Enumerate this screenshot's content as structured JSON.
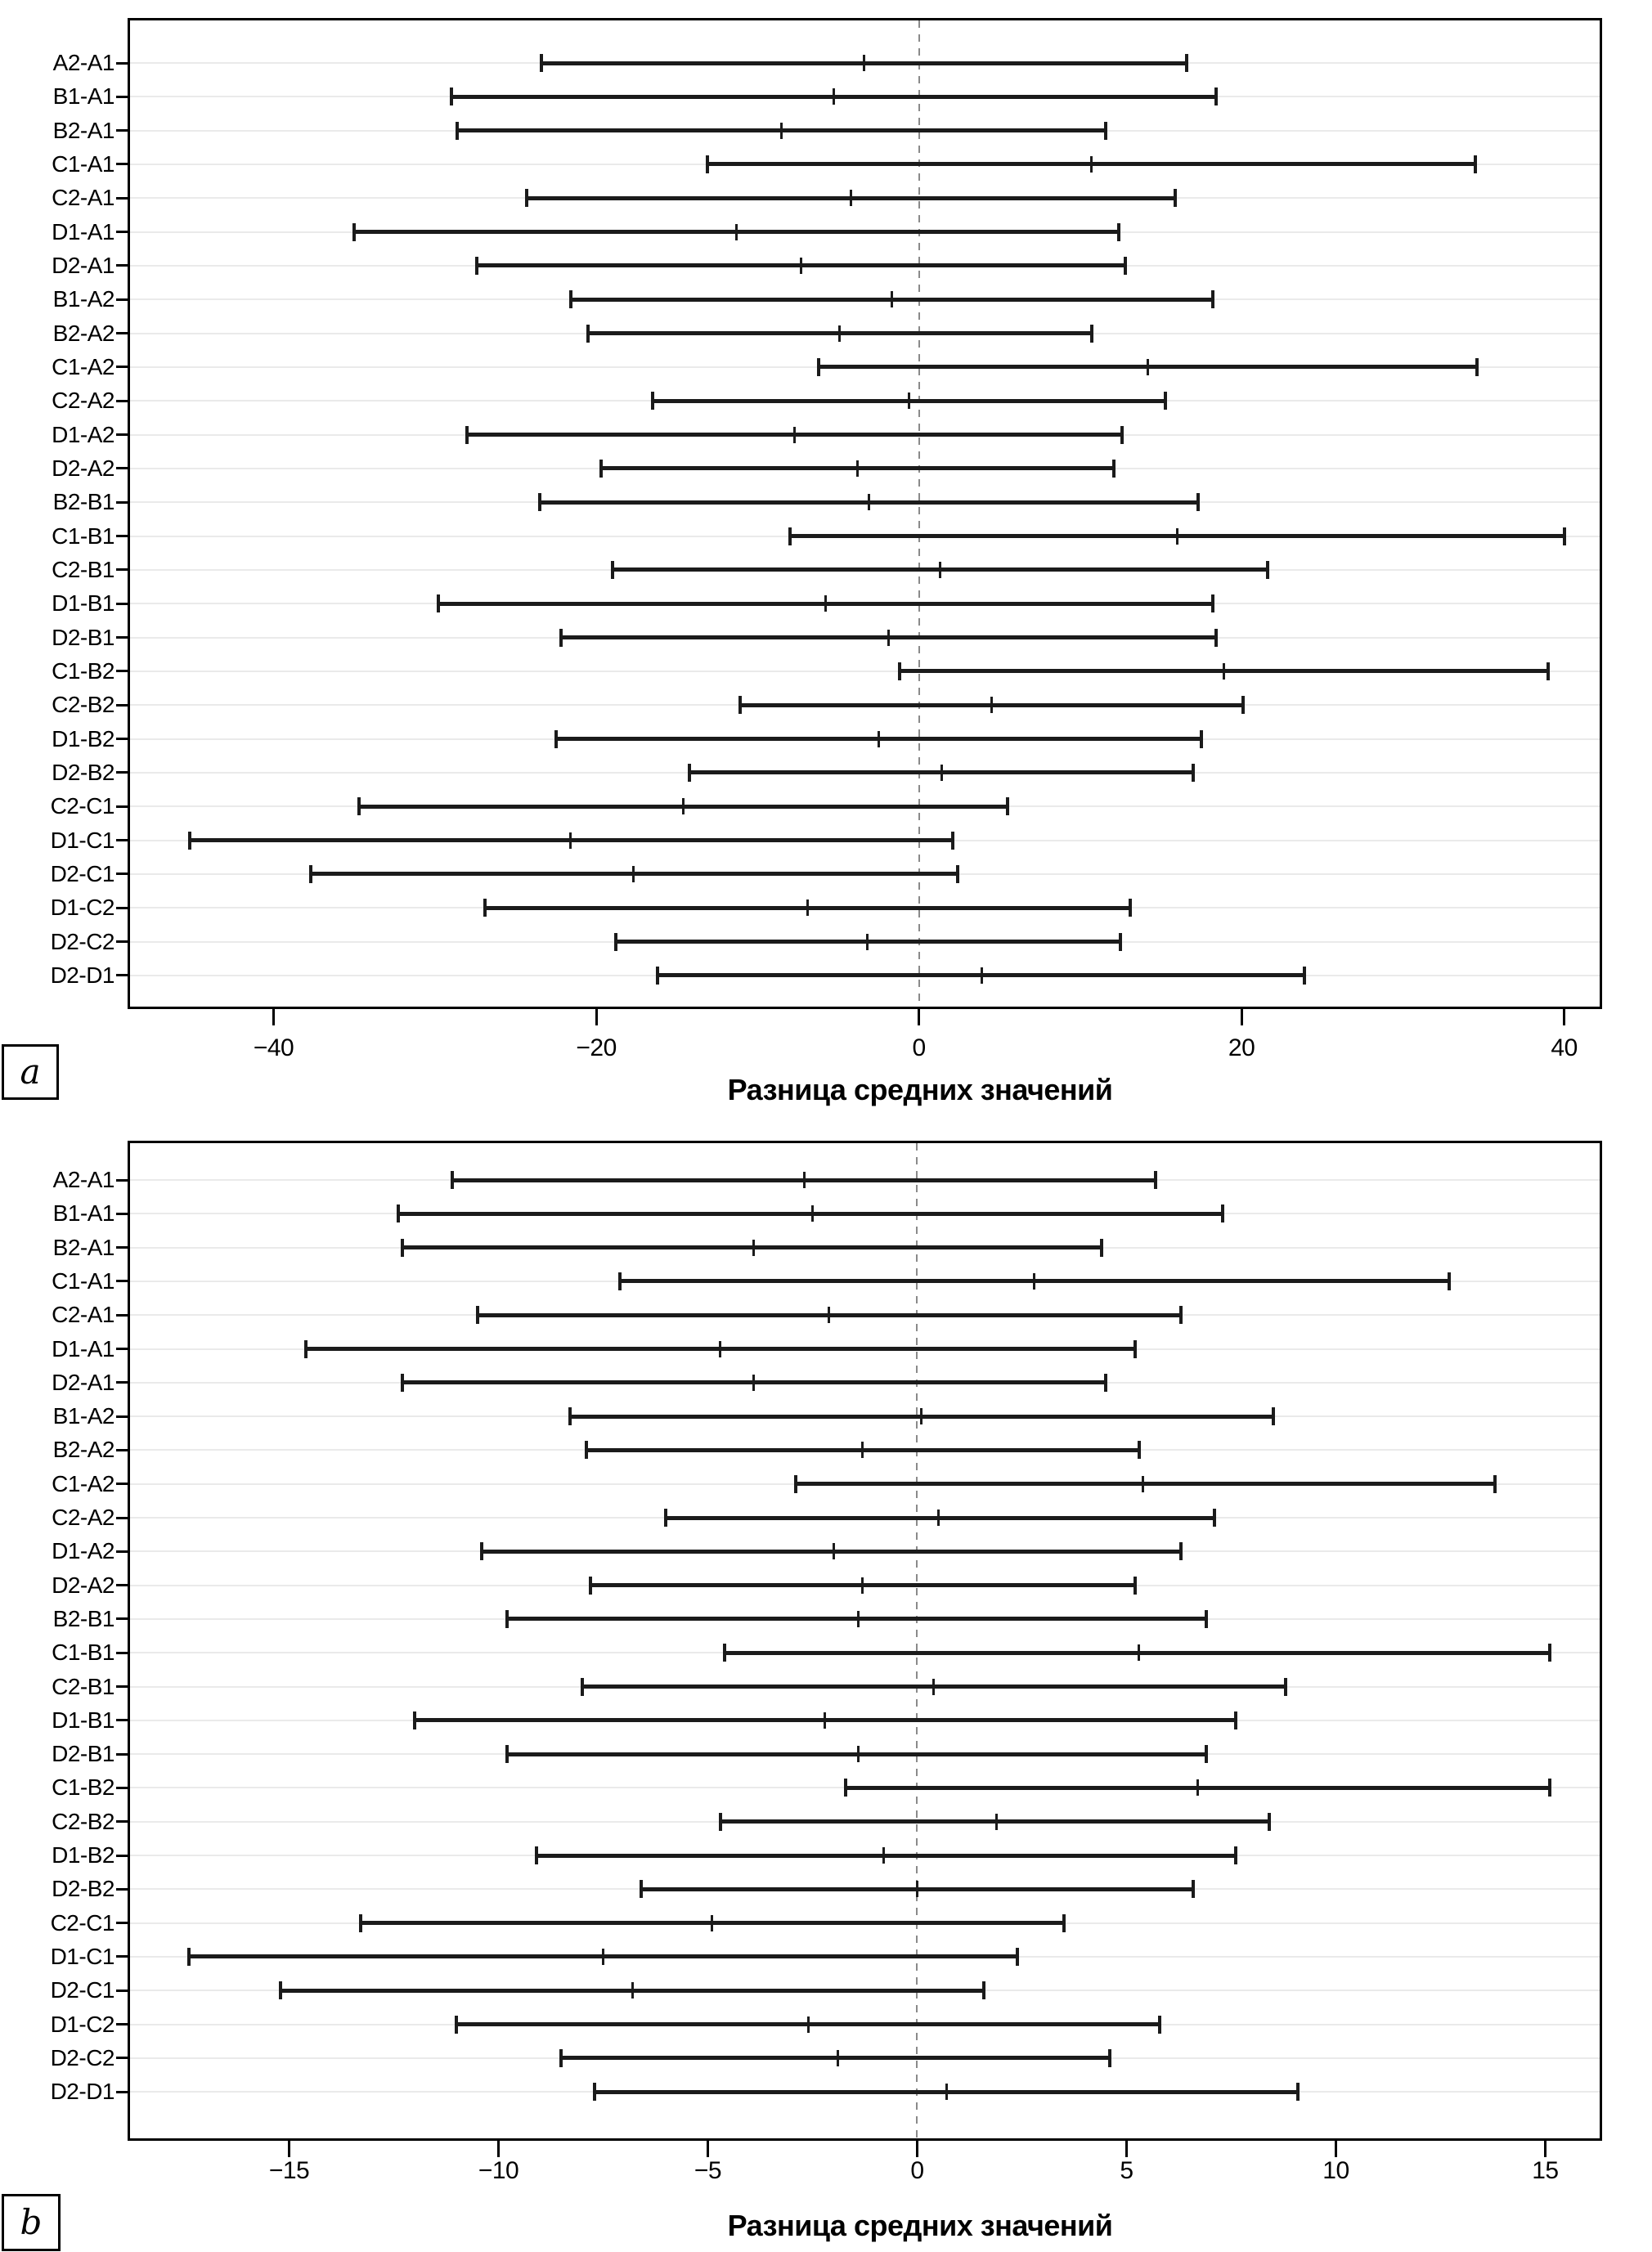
{
  "chart_data": [
    {
      "type": "errorbar",
      "panel_label": "a",
      "xlabel": "Разница средних значений",
      "xlim": [
        -48.9,
        42.2
      ],
      "xticks": [
        -40,
        -20,
        0,
        20,
        40
      ],
      "xtick_labels": [
        "−40",
        "−20",
        "0",
        "20",
        "40"
      ],
      "grid": "horizontal-light-per-row",
      "zero_line": "dashed-gray",
      "legend": "none",
      "categories": [
        "A2-A1",
        "B1-A1",
        "B2-A1",
        "C1-A1",
        "C2-A1",
        "D1-A1",
        "D2-A1",
        "B1-A2",
        "B2-A2",
        "C1-A2",
        "C2-A2",
        "D1-A2",
        "D2-A2",
        "B2-B1",
        "C1-B1",
        "C2-B1",
        "D1-B1",
        "D2-B1",
        "C1-B2",
        "C2-B2",
        "D1-B2",
        "D2-B2",
        "C2-C1",
        "D1-C1",
        "D2-C1",
        "D1-C2",
        "D2-C2",
        "D2-D1"
      ],
      "series": [
        {
          "name": "confidence-interval",
          "lo": [
            -23.4,
            -29.0,
            -28.6,
            -13.1,
            -24.3,
            -35.0,
            -27.4,
            -21.6,
            -20.5,
            -6.2,
            -16.5,
            -28.0,
            -19.7,
            -23.5,
            -8.0,
            -19.0,
            -29.8,
            -22.2,
            -1.2,
            -11.1,
            -22.5,
            -14.2,
            -34.7,
            -45.2,
            -37.7,
            -26.9,
            -18.8,
            -16.2
          ],
          "mid": [
            -3.4,
            -5.3,
            -8.5,
            10.7,
            -4.2,
            -11.3,
            -7.3,
            -1.7,
            -4.9,
            14.2,
            -0.6,
            -7.7,
            -3.8,
            -3.1,
            16.0,
            1.3,
            -5.8,
            -1.9,
            18.9,
            4.5,
            -2.5,
            1.4,
            -14.6,
            -21.6,
            -17.7,
            -6.9,
            -3.2,
            3.9
          ],
          "hi": [
            16.6,
            18.4,
            11.6,
            34.5,
            15.9,
            12.4,
            12.8,
            18.2,
            10.7,
            34.6,
            15.3,
            12.6,
            12.1,
            17.3,
            40.0,
            21.6,
            18.2,
            18.4,
            39.0,
            20.1,
            17.5,
            17.0,
            5.5,
            2.1,
            2.4,
            13.1,
            12.5,
            23.9
          ]
        }
      ]
    },
    {
      "type": "errorbar",
      "panel_label": "b",
      "xlabel": "Разница средних значений",
      "xlim": [
        -18.8,
        16.3
      ],
      "xticks": [
        -15,
        -10,
        -5,
        0,
        5,
        10,
        15
      ],
      "xtick_labels": [
        "−15",
        "−10",
        "−5",
        "0",
        "5",
        "10",
        "15"
      ],
      "grid": "horizontal-light-per-row",
      "zero_line": "dashed-gray",
      "legend": "none",
      "categories": [
        "A2-A1",
        "B1-A1",
        "B2-A1",
        "C1-A1",
        "C2-A1",
        "D1-A1",
        "D2-A1",
        "B1-A2",
        "B2-A2",
        "C1-A2",
        "C2-A2",
        "D1-A2",
        "D2-A2",
        "B2-B1",
        "C1-B1",
        "C2-B1",
        "D1-B1",
        "D2-B1",
        "C1-B2",
        "C2-B2",
        "D1-B2",
        "D2-B2",
        "C2-C1",
        "D1-C1",
        "D2-C1",
        "D1-C2",
        "D2-C2",
        "D2-D1"
      ],
      "series": [
        {
          "name": "confidence-interval",
          "lo": [
            -11.1,
            -12.4,
            -12.3,
            -7.1,
            -10.5,
            -14.6,
            -12.3,
            -8.3,
            -7.9,
            -2.9,
            -6.0,
            -10.4,
            -7.8,
            -9.8,
            -4.6,
            -8.0,
            -12.0,
            -9.8,
            -1.7,
            -4.7,
            -9.1,
            -6.6,
            -13.3,
            -17.4,
            -15.2,
            -11.0,
            -8.5,
            -7.7
          ],
          "mid": [
            -2.7,
            -2.5,
            -3.9,
            2.8,
            -2.1,
            -4.7,
            -3.9,
            0.1,
            -1.3,
            5.4,
            0.5,
            -2.0,
            -1.3,
            -1.4,
            5.3,
            0.4,
            -2.2,
            -1.4,
            6.7,
            1.9,
            -0.8,
            0.0,
            -4.9,
            -7.5,
            -6.8,
            -2.6,
            -1.9,
            0.7
          ],
          "hi": [
            5.7,
            7.3,
            4.4,
            12.7,
            6.3,
            5.2,
            4.5,
            8.5,
            5.3,
            13.8,
            7.1,
            6.3,
            5.2,
            6.9,
            15.1,
            8.8,
            7.6,
            6.9,
            15.1,
            8.4,
            7.6,
            6.6,
            3.5,
            2.4,
            1.6,
            5.8,
            4.6,
            9.1
          ]
        }
      ]
    }
  ]
}
